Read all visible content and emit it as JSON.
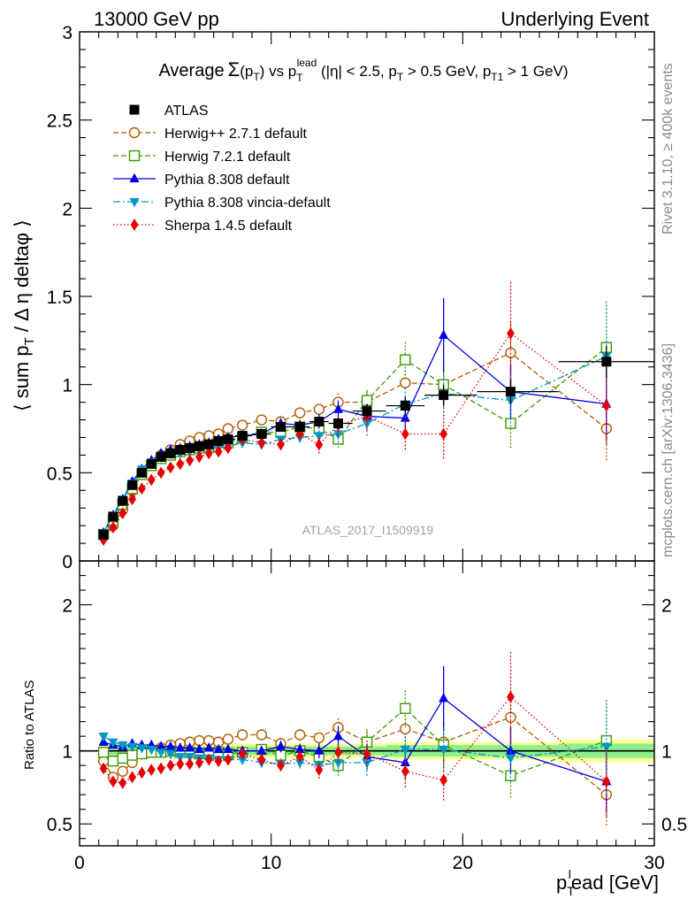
{
  "header": {
    "left": "13000 GeV pp",
    "right": "Underlying Event"
  },
  "title": {
    "prefix": "Average",
    "sigma": "Σ",
    "p": "(p",
    "p_sub": "T",
    "p_close": ")",
    "vs": " vs p",
    "vs_sub": "T",
    "vs_sup": "lead",
    "cuts_a": " (|η| < 2.5, p",
    "cuts_a_sub": "T",
    "cuts_b": " > 0.5 GeV, p",
    "cuts_b_sub": "T1",
    "cuts_c": " > 1 GeV)"
  },
  "side": {
    "rivet": "Rivet 3.1.10, ≥ 400k events",
    "mcplots": "mcplots.cern.ch [arXiv:1306.3436]"
  },
  "watermark": "ATLAS_2017_I1509919",
  "axes": {
    "ylabel": "⟨ sum p",
    "ylabel_sub": "T",
    "ylabel_rest": " / Δ η deltaφ ⟩",
    "xlabel": "p",
    "xlabel_sub": "T",
    "xlabel_sup": "l",
    "xlabel_rest": "ead [GeV]",
    "ratio_label": "Ratio to ATLAS"
  },
  "colors": {
    "atlas": "#000000",
    "herwigpp": "#b25a00",
    "herwig7": "#3c9b00",
    "pythia": "#0000e6",
    "vincia": "#0096c8",
    "sherpa": "#e60000",
    "band_inner": "#8ef08e",
    "band_outer": "#ffff9a"
  },
  "chart_data": {
    "type": "scatter",
    "main": {
      "xlim": [
        0,
        30
      ],
      "ylim": [
        0,
        3
      ],
      "yticks": [
        0,
        0.5,
        1,
        1.5,
        2,
        2.5,
        3
      ],
      "yticklabels": [
        "0",
        "0.5",
        "1",
        "1.5",
        "2",
        "2.5",
        "3"
      ]
    },
    "ratio": {
      "ylim": [
        0.35,
        2.3
      ],
      "yticks": [
        0.5,
        1,
        2
      ],
      "yticklabels": [
        "0.5",
        "1",
        "2"
      ]
    },
    "xticks": [
      0,
      10,
      20,
      30
    ],
    "xticklabels": [
      "0",
      "10",
      "20",
      "30"
    ],
    "x": [
      1.25,
      1.75,
      2.25,
      2.75,
      3.25,
      3.75,
      4.25,
      4.75,
      5.25,
      5.75,
      6.25,
      6.75,
      7.25,
      7.75,
      8.5,
      9.5,
      10.5,
      11.5,
      12.5,
      13.5,
      15,
      17,
      19,
      22.5,
      27.5
    ],
    "series": [
      {
        "name": "ATLAS",
        "key": "atlas",
        "marker": "square-filled",
        "line": "none",
        "values": [
          0.15,
          0.25,
          0.34,
          0.43,
          0.5,
          0.55,
          0.59,
          0.61,
          0.63,
          0.64,
          0.65,
          0.66,
          0.68,
          0.69,
          0.71,
          0.72,
          0.76,
          0.76,
          0.79,
          0.78,
          0.85,
          0.88,
          0.94,
          0.96,
          1.13
        ],
        "errors": [
          0.01,
          0.01,
          0.01,
          0.01,
          0.01,
          0.01,
          0.01,
          0.01,
          0.01,
          0.01,
          0.01,
          0.01,
          0.01,
          0.01,
          0.01,
          0.01,
          0.02,
          0.02,
          0.02,
          0.03,
          0.04,
          0.05,
          0.06,
          0.07,
          0.09
        ],
        "band_inner": [
          0.03,
          0.03,
          0.03,
          0.03,
          0.03,
          0.03,
          0.03,
          0.03,
          0.03,
          0.03,
          0.03,
          0.03,
          0.03,
          0.03,
          0.03,
          0.03,
          0.03,
          0.03,
          0.03,
          0.03,
          0.03,
          0.04,
          0.04,
          0.04,
          0.05
        ],
        "band_outer": [
          0.05,
          0.05,
          0.05,
          0.05,
          0.05,
          0.05,
          0.05,
          0.05,
          0.05,
          0.05,
          0.05,
          0.05,
          0.05,
          0.05,
          0.05,
          0.05,
          0.05,
          0.05,
          0.05,
          0.05,
          0.05,
          0.06,
          0.06,
          0.06,
          0.08
        ]
      },
      {
        "name": "Herwig++ 2.7.1 default",
        "key": "herwigpp",
        "marker": "circle-open",
        "line": "dashed",
        "values": [
          0.14,
          0.2,
          0.29,
          0.4,
          0.49,
          0.55,
          0.6,
          0.63,
          0.66,
          0.68,
          0.7,
          0.71,
          0.72,
          0.75,
          0.77,
          0.8,
          0.79,
          0.84,
          0.86,
          0.9,
          0.9,
          1.01,
          1.0,
          1.18,
          0.75
        ],
        "errors": [
          0.01,
          0.01,
          0.01,
          0.01,
          0.01,
          0.01,
          0.01,
          0.01,
          0.01,
          0.01,
          0.01,
          0.01,
          0.01,
          0.01,
          0.02,
          0.02,
          0.03,
          0.03,
          0.04,
          0.06,
          0.07,
          0.1,
          0.13,
          0.18,
          0.18
        ],
        "ratio": [
          0.93,
          0.82,
          0.86,
          0.92,
          0.98,
          1.0,
          1.02,
          1.04,
          1.05,
          1.06,
          1.07,
          1.07,
          1.06,
          1.08,
          1.11,
          1.11,
          1.05,
          1.11,
          1.09,
          1.16,
          1.06,
          1.15,
          1.06,
          1.23,
          0.7
        ],
        "ratio_err": [
          0.02,
          0.02,
          0.02,
          0.02,
          0.02,
          0.02,
          0.02,
          0.02,
          0.02,
          0.02,
          0.02,
          0.02,
          0.02,
          0.02,
          0.03,
          0.03,
          0.04,
          0.04,
          0.05,
          0.07,
          0.08,
          0.11,
          0.14,
          0.19,
          0.21
        ]
      },
      {
        "name": "Herwig 7.2.1 default",
        "key": "herwig7",
        "marker": "square-open",
        "line": "dashed",
        "values": [
          0.15,
          0.23,
          0.32,
          0.41,
          0.49,
          0.54,
          0.58,
          0.6,
          0.62,
          0.63,
          0.64,
          0.65,
          0.67,
          0.67,
          0.7,
          0.73,
          0.73,
          0.76,
          0.75,
          0.69,
          0.91,
          1.14,
          1.0,
          0.78,
          1.21
        ],
        "errors": [
          0.01,
          0.01,
          0.01,
          0.01,
          0.01,
          0.01,
          0.01,
          0.01,
          0.01,
          0.01,
          0.01,
          0.01,
          0.01,
          0.01,
          0.02,
          0.02,
          0.03,
          0.03,
          0.04,
          0.05,
          0.07,
          0.11,
          0.14,
          0.14,
          0.27
        ],
        "ratio": [
          0.99,
          0.93,
          0.95,
          0.97,
          0.98,
          0.99,
          0.99,
          1.0,
          0.99,
          0.99,
          0.98,
          0.98,
          0.99,
          0.98,
          0.99,
          1.01,
          0.97,
          1.0,
          0.96,
          0.9,
          1.06,
          1.29,
          1.04,
          0.83,
          1.07
        ],
        "ratio_err": [
          0.02,
          0.02,
          0.02,
          0.02,
          0.02,
          0.02,
          0.02,
          0.02,
          0.02,
          0.02,
          0.02,
          0.02,
          0.02,
          0.02,
          0.03,
          0.03,
          0.04,
          0.04,
          0.05,
          0.07,
          0.09,
          0.13,
          0.15,
          0.15,
          0.29
        ]
      },
      {
        "name": "Pythia 8.308 default",
        "key": "pythia",
        "marker": "triangle-up-filled",
        "line": "solid",
        "values": [
          0.16,
          0.26,
          0.35,
          0.45,
          0.52,
          0.57,
          0.61,
          0.63,
          0.64,
          0.65,
          0.66,
          0.67,
          0.69,
          0.7,
          0.71,
          0.72,
          0.78,
          0.77,
          0.79,
          0.86,
          0.82,
          0.81,
          1.28,
          0.96,
          0.89
        ],
        "errors": [
          0.01,
          0.01,
          0.01,
          0.01,
          0.01,
          0.01,
          0.01,
          0.01,
          0.01,
          0.01,
          0.01,
          0.01,
          0.01,
          0.01,
          0.02,
          0.02,
          0.03,
          0.03,
          0.04,
          0.05,
          0.07,
          0.1,
          0.21,
          0.15,
          0.2
        ],
        "ratio": [
          1.06,
          1.04,
          1.03,
          1.05,
          1.04,
          1.04,
          1.03,
          1.03,
          1.02,
          1.02,
          1.01,
          1.02,
          1.01,
          1.01,
          1.0,
          1.0,
          1.03,
          1.01,
          1.0,
          1.1,
          0.96,
          0.92,
          1.36,
          1.0,
          0.79
        ],
        "ratio_err": [
          0.02,
          0.02,
          0.02,
          0.02,
          0.02,
          0.02,
          0.02,
          0.02,
          0.02,
          0.02,
          0.02,
          0.02,
          0.02,
          0.02,
          0.03,
          0.03,
          0.04,
          0.04,
          0.05,
          0.07,
          0.09,
          0.12,
          0.22,
          0.16,
          0.21
        ]
      },
      {
        "name": "Pythia 8.308 vincia-default",
        "key": "vincia",
        "marker": "triangle-down-filled",
        "line": "dashdot",
        "values": [
          0.16,
          0.26,
          0.35,
          0.44,
          0.52,
          0.56,
          0.59,
          0.61,
          0.61,
          0.62,
          0.63,
          0.64,
          0.64,
          0.65,
          0.67,
          0.66,
          0.69,
          0.7,
          0.71,
          0.72,
          0.78,
          0.89,
          0.95,
          0.91,
          1.16
        ],
        "errors": [
          0.01,
          0.01,
          0.01,
          0.01,
          0.01,
          0.01,
          0.01,
          0.01,
          0.01,
          0.01,
          0.01,
          0.01,
          0.01,
          0.01,
          0.02,
          0.02,
          0.03,
          0.03,
          0.04,
          0.05,
          0.07,
          0.1,
          0.13,
          0.15,
          0.3
        ],
        "ratio": [
          1.1,
          1.06,
          1.04,
          1.03,
          1.02,
          1.01,
          0.99,
          0.98,
          0.96,
          0.96,
          0.95,
          0.95,
          0.94,
          0.94,
          0.94,
          0.92,
          0.91,
          0.92,
          0.9,
          0.92,
          0.92,
          1.01,
          1.01,
          0.95,
          1.03
        ],
        "ratio_err": [
          0.02,
          0.02,
          0.02,
          0.02,
          0.02,
          0.02,
          0.02,
          0.02,
          0.02,
          0.02,
          0.02,
          0.02,
          0.02,
          0.02,
          0.03,
          0.03,
          0.04,
          0.04,
          0.05,
          0.07,
          0.09,
          0.12,
          0.15,
          0.16,
          0.32
        ]
      },
      {
        "name": "Sherpa 1.4.5 default",
        "key": "sherpa",
        "marker": "diamond-filled",
        "line": "dotted",
        "values": [
          0.12,
          0.19,
          0.27,
          0.35,
          0.41,
          0.46,
          0.5,
          0.53,
          0.55,
          0.57,
          0.59,
          0.61,
          0.62,
          0.64,
          0.69,
          0.67,
          0.66,
          0.72,
          0.66,
          0.77,
          0.82,
          0.72,
          0.72,
          1.29,
          0.88
        ],
        "errors": [
          0.01,
          0.01,
          0.01,
          0.01,
          0.01,
          0.01,
          0.01,
          0.01,
          0.01,
          0.01,
          0.01,
          0.01,
          0.01,
          0.01,
          0.02,
          0.02,
          0.03,
          0.03,
          0.05,
          0.06,
          0.08,
          0.09,
          0.14,
          0.3,
          0.22
        ],
        "ratio": [
          0.88,
          0.79,
          0.78,
          0.82,
          0.85,
          0.87,
          0.88,
          0.9,
          0.91,
          0.91,
          0.92,
          0.94,
          0.93,
          0.94,
          0.98,
          0.94,
          0.9,
          0.96,
          0.87,
          0.99,
          0.98,
          0.86,
          0.8,
          1.37,
          0.79
        ],
        "ratio_err": [
          0.02,
          0.02,
          0.02,
          0.02,
          0.02,
          0.02,
          0.02,
          0.02,
          0.02,
          0.02,
          0.02,
          0.02,
          0.02,
          0.02,
          0.03,
          0.03,
          0.04,
          0.04,
          0.06,
          0.07,
          0.09,
          0.11,
          0.14,
          0.31,
          0.24
        ]
      }
    ]
  }
}
